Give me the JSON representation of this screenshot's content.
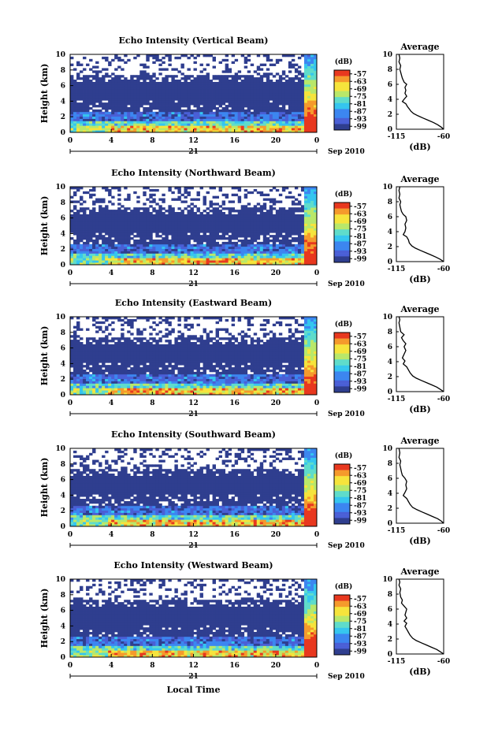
{
  "figure": {
    "footer_xlabel": "Local Time",
    "day_label": "21",
    "date_label": "Sep 2010",
    "cbar_unit": "(dB)",
    "avg_title": "Average",
    "avg_xlabel": "(dB)"
  },
  "colors": {
    "colormap": [
      "#2f3e8f",
      "#4a5fd6",
      "#3c86f0",
      "#35c6ef",
      "#5fdccb",
      "#b9e86a",
      "#f6e43c",
      "#f59a2c",
      "#e8381f"
    ],
    "background_data": "#2f3e8f",
    "missing": "#ffffff"
  },
  "chart_data": [
    {
      "type": "heatmap",
      "title": "Echo Intensity (Vertical Beam)",
      "ylabel": "Height (km)",
      "xlim": [
        0,
        24
      ],
      "ylim": [
        0,
        10
      ],
      "xticks": [
        "0",
        "4",
        "8",
        "12",
        "16",
        "20",
        "0"
      ],
      "yticks": [
        "0",
        "2",
        "4",
        "6",
        "8",
        "10"
      ],
      "colorbar": {
        "ticks": [
          "-57",
          "-63",
          "-69",
          "-75",
          "-81",
          "-87",
          "-93",
          "-99"
        ]
      },
      "average_profile": {
        "xlim": [
          -115,
          -60
        ],
        "ylim": [
          0,
          10
        ],
        "xticks": [
          "-115",
          "-60"
        ],
        "yticks": [
          "0",
          "2",
          "4",
          "6",
          "8",
          "10"
        ],
        "points": [
          [
            -60,
            0
          ],
          [
            -63,
            0.3
          ],
          [
            -67,
            0.6
          ],
          [
            -72,
            0.9
          ],
          [
            -78,
            1.2
          ],
          [
            -84,
            1.5
          ],
          [
            -90,
            1.8
          ],
          [
            -95,
            2.1
          ],
          [
            -98,
            2.4
          ],
          [
            -100,
            2.7
          ],
          [
            -102,
            3
          ],
          [
            -104,
            3.4
          ],
          [
            -108,
            3.7
          ],
          [
            -106,
            4.0
          ],
          [
            -103,
            4.4
          ],
          [
            -105,
            4.8
          ],
          [
            -104,
            5.2
          ],
          [
            -105,
            5.6
          ],
          [
            -103,
            6.0
          ],
          [
            -106,
            6.3
          ],
          [
            -108,
            6.8
          ],
          [
            -109,
            7.2
          ],
          [
            -110,
            7.6
          ],
          [
            -111,
            8.0
          ],
          [
            -110,
            8.5
          ],
          [
            -112,
            9.0
          ],
          [
            -111,
            9.5
          ],
          [
            -112,
            10
          ]
        ]
      }
    },
    {
      "type": "heatmap",
      "title": "Echo Intensity (Northward Beam)",
      "ylabel": "Height (km)",
      "xlim": [
        0,
        24
      ],
      "ylim": [
        0,
        10
      ],
      "xticks": [
        "0",
        "4",
        "8",
        "12",
        "16",
        "20",
        "0"
      ],
      "yticks": [
        "0",
        "2",
        "4",
        "6",
        "8",
        "10"
      ],
      "colorbar": {
        "ticks": [
          "-57",
          "-63",
          "-69",
          "-75",
          "-81",
          "-87",
          "-93",
          "-99"
        ]
      },
      "average_profile": {
        "xlim": [
          -115,
          -60
        ],
        "ylim": [
          0,
          10
        ],
        "xticks": [
          "-115",
          "-60"
        ],
        "yticks": [
          "0",
          "2",
          "4",
          "6",
          "8",
          "10"
        ],
        "points": [
          [
            -60,
            0
          ],
          [
            -64,
            0.3
          ],
          [
            -69,
            0.6
          ],
          [
            -75,
            0.9
          ],
          [
            -81,
            1.2
          ],
          [
            -87,
            1.5
          ],
          [
            -93,
            1.8
          ],
          [
            -97,
            2.1
          ],
          [
            -100,
            2.5
          ],
          [
            -101,
            2.9
          ],
          [
            -103,
            3.3
          ],
          [
            -107,
            3.6
          ],
          [
            -105,
            4.0
          ],
          [
            -104,
            4.5
          ],
          [
            -105,
            5.0
          ],
          [
            -103,
            5.5
          ],
          [
            -104,
            6.0
          ],
          [
            -107,
            6.3
          ],
          [
            -109,
            6.7
          ],
          [
            -110,
            7.1
          ],
          [
            -111,
            7.6
          ],
          [
            -110,
            8.0
          ],
          [
            -112,
            8.5
          ],
          [
            -111,
            9.0
          ],
          [
            -112,
            9.5
          ],
          [
            -111,
            10
          ]
        ]
      }
    },
    {
      "type": "heatmap",
      "title": "Echo Intensity (Eastward Beam)",
      "ylabel": "Height (km)",
      "xlim": [
        0,
        24
      ],
      "ylim": [
        0,
        10
      ],
      "xticks": [
        "0",
        "4",
        "8",
        "12",
        "16",
        "20",
        "0"
      ],
      "yticks": [
        "0",
        "2",
        "4",
        "6",
        "8",
        "10"
      ],
      "colorbar": {
        "ticks": [
          "-57",
          "-63",
          "-69",
          "-75",
          "-81",
          "-87",
          "-93",
          "-99"
        ]
      },
      "average_profile": {
        "xlim": [
          -115,
          -60
        ],
        "ylim": [
          0,
          10
        ],
        "xticks": [
          "-115",
          "-60"
        ],
        "yticks": [
          "0",
          "2",
          "4",
          "6",
          "8",
          "10"
        ],
        "points": [
          [
            -60,
            0
          ],
          [
            -64,
            0.3
          ],
          [
            -68,
            0.6
          ],
          [
            -74,
            0.9
          ],
          [
            -80,
            1.2
          ],
          [
            -86,
            1.5
          ],
          [
            -92,
            1.8
          ],
          [
            -96,
            2.1
          ],
          [
            -99,
            2.5
          ],
          [
            -101,
            2.9
          ],
          [
            -103,
            3.3
          ],
          [
            -107,
            3.7
          ],
          [
            -105,
            4.1
          ],
          [
            -108,
            4.5
          ],
          [
            -106,
            5.0
          ],
          [
            -104,
            5.5
          ],
          [
            -106,
            6.0
          ],
          [
            -104,
            6.4
          ],
          [
            -107,
            6.8
          ],
          [
            -109,
            7.2
          ],
          [
            -106,
            7.6
          ],
          [
            -110,
            8.0
          ],
          [
            -111,
            8.6
          ],
          [
            -112,
            9.2
          ],
          [
            -111,
            9.6
          ],
          [
            -112,
            10
          ]
        ]
      }
    },
    {
      "type": "heatmap",
      "title": "Echo Intensity (Southward Beam)",
      "ylabel": "Height (km)",
      "xlim": [
        0,
        24
      ],
      "ylim": [
        0,
        10
      ],
      "xticks": [
        "0",
        "4",
        "8",
        "12",
        "16",
        "20",
        "0"
      ],
      "yticks": [
        "0",
        "2",
        "4",
        "6",
        "8",
        "10"
      ],
      "colorbar": {
        "ticks": [
          "-57",
          "-63",
          "-69",
          "-75",
          "-81",
          "-87",
          "-93",
          "-99"
        ]
      },
      "average_profile": {
        "xlim": [
          -115,
          -60
        ],
        "ylim": [
          0,
          10
        ],
        "xticks": [
          "-115",
          "-60"
        ],
        "yticks": [
          "0",
          "2",
          "4",
          "6",
          "8",
          "10"
        ],
        "points": [
          [
            -60,
            0
          ],
          [
            -63,
            0.3
          ],
          [
            -67,
            0.6
          ],
          [
            -73,
            0.9
          ],
          [
            -79,
            1.2
          ],
          [
            -85,
            1.5
          ],
          [
            -91,
            1.8
          ],
          [
            -96,
            2.1
          ],
          [
            -99,
            2.5
          ],
          [
            -101,
            2.9
          ],
          [
            -103,
            3.3
          ],
          [
            -107,
            3.7
          ],
          [
            -105,
            4.1
          ],
          [
            -103,
            4.6
          ],
          [
            -104,
            5.1
          ],
          [
            -103,
            5.6
          ],
          [
            -105,
            6.0
          ],
          [
            -108,
            6.4
          ],
          [
            -109,
            6.8
          ],
          [
            -110,
            7.3
          ],
          [
            -111,
            7.8
          ],
          [
            -110,
            8.3
          ],
          [
            -112,
            8.8
          ],
          [
            -111,
            9.4
          ],
          [
            -112,
            10
          ]
        ]
      }
    },
    {
      "type": "heatmap",
      "title": "Echo Intensity (Westward Beam)",
      "ylabel": "Height (km)",
      "xlim": [
        0,
        24
      ],
      "ylim": [
        0,
        10
      ],
      "xticks": [
        "0",
        "4",
        "8",
        "12",
        "16",
        "20",
        "0"
      ],
      "yticks": [
        "0",
        "2",
        "4",
        "6",
        "8",
        "10"
      ],
      "colorbar": {
        "ticks": [
          "-57",
          "-63",
          "-69",
          "-75",
          "-81",
          "-87",
          "-93",
          "-99"
        ]
      },
      "average_profile": {
        "xlim": [
          -115,
          -60
        ],
        "ylim": [
          0,
          10
        ],
        "xticks": [
          "-115",
          "-60"
        ],
        "yticks": [
          "0",
          "2",
          "4",
          "6",
          "8",
          "10"
        ],
        "points": [
          [
            -60,
            0
          ],
          [
            -64,
            0.3
          ],
          [
            -68,
            0.6
          ],
          [
            -74,
            0.9
          ],
          [
            -80,
            1.2
          ],
          [
            -86,
            1.5
          ],
          [
            -92,
            1.8
          ],
          [
            -96,
            2.1
          ],
          [
            -99,
            2.5
          ],
          [
            -101,
            2.9
          ],
          [
            -103,
            3.3
          ],
          [
            -105,
            3.7
          ],
          [
            -103,
            4.1
          ],
          [
            -106,
            4.4
          ],
          [
            -103,
            4.8
          ],
          [
            -105,
            5.2
          ],
          [
            -104,
            5.6
          ],
          [
            -103,
            6.0
          ],
          [
            -106,
            6.4
          ],
          [
            -109,
            6.8
          ],
          [
            -108,
            7.2
          ],
          [
            -110,
            7.6
          ],
          [
            -111,
            8.2
          ],
          [
            -110,
            8.7
          ],
          [
            -112,
            9.2
          ],
          [
            -111,
            9.6
          ],
          [
            -112,
            10
          ]
        ]
      }
    }
  ]
}
